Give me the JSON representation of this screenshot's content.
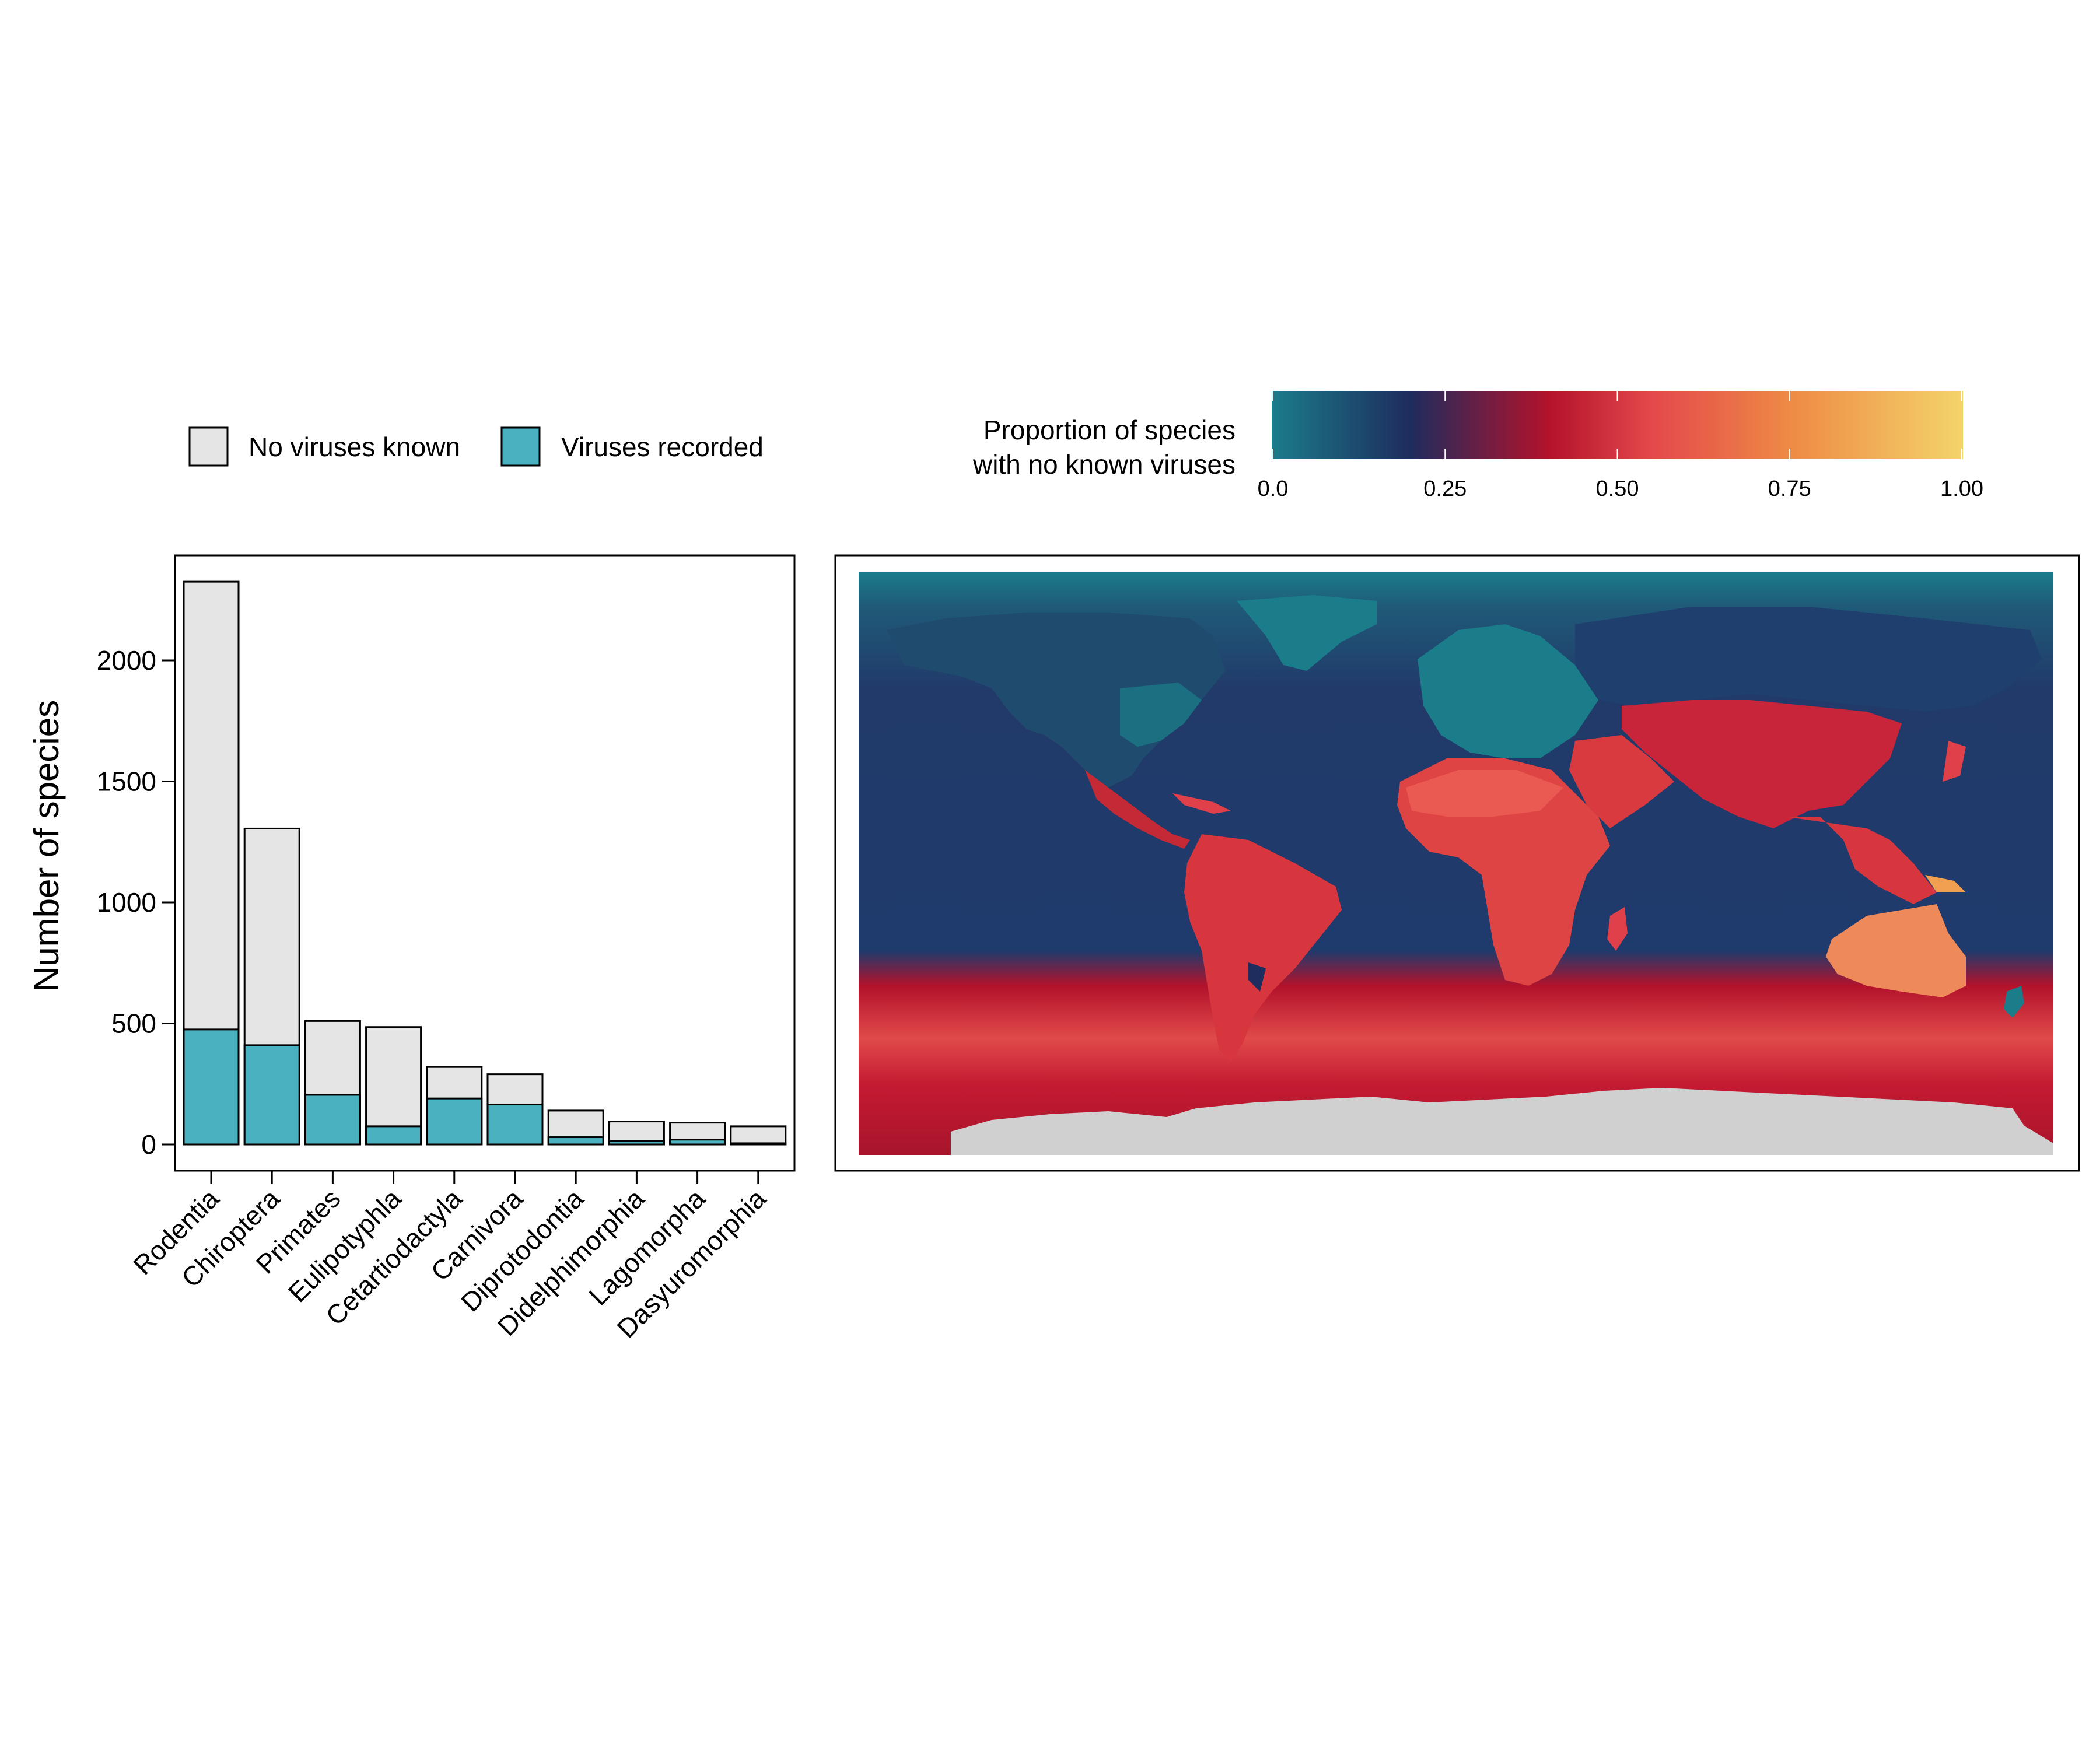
{
  "legend": {
    "items": [
      {
        "label": "No viruses known",
        "color": "#e5e5e5"
      },
      {
        "label": "Viruses recorded",
        "color": "#4ab1c1"
      }
    ]
  },
  "colorbar": {
    "title_line1": "Proportion of species",
    "title_line2": "with no known viruses",
    "ticks": [
      "0.0",
      "0.25",
      "0.50",
      "0.75",
      "1.00"
    ],
    "tick_values": [
      0,
      0.25,
      0.5,
      0.75,
      1.0
    ],
    "range": [
      0,
      1
    ],
    "colors": [
      "#1b7c8a",
      "#1e2c5e",
      "#b3122b",
      "#e4484b",
      "#ee8a45",
      "#f3d46a"
    ]
  },
  "chart_data": [
    {
      "type": "bar",
      "stacked": true,
      "ylabel": "Number of species",
      "ylim": [
        0,
        2300
      ],
      "yticks": [
        0,
        500,
        1000,
        1500,
        2000
      ],
      "categories": [
        "Rodentia",
        "Chiroptera",
        "Primates",
        "Eulipotyphla",
        "Cetartiodactyla",
        "Carnivora",
        "Diprotodontia",
        "Didelphimorphia",
        "Lagomorpha",
        "Dasyuromorphia"
      ],
      "series": [
        {
          "name": "Viruses recorded",
          "color": "#4ab1c1",
          "values": [
            475,
            410,
            205,
            75,
            190,
            165,
            30,
            15,
            20,
            5
          ]
        },
        {
          "name": "No viruses known",
          "color": "#e5e5e5",
          "values": [
            1850,
            895,
            305,
            410,
            130,
            125,
            110,
            80,
            70,
            70
          ]
        }
      ],
      "totals": [
        2325,
        1305,
        510,
        485,
        320,
        290,
        140,
        95,
        90,
        75
      ]
    },
    {
      "type": "heatmap",
      "subtype": "world map",
      "value_range": [
        0,
        1
      ],
      "description_of_encoding": "",
      "land_null_color": "#d0d0d0"
    }
  ]
}
